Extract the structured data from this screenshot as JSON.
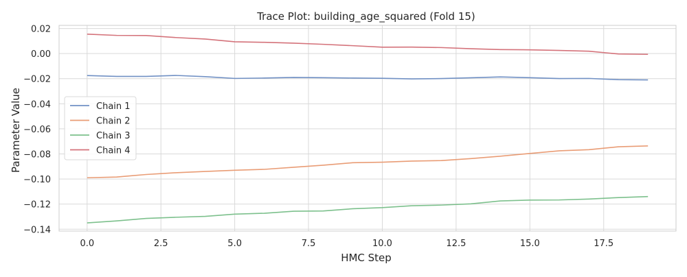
{
  "chart_data": {
    "type": "line",
    "title": "Trace Plot: building_age_squared (Fold 15)",
    "xlabel": "HMC Step",
    "ylabel": "Parameter Value",
    "x": [
      0,
      1,
      2,
      3,
      4,
      5,
      6,
      7,
      8,
      9,
      10,
      11,
      12,
      13,
      14,
      15,
      16,
      17,
      18,
      19
    ],
    "xlim": [
      -0.95,
      19.95
    ],
    "ylim": [
      -0.1415,
      0.0225
    ],
    "xticks": [
      0.0,
      2.5,
      5.0,
      7.5,
      10.0,
      12.5,
      15.0,
      17.5
    ],
    "xtick_labels": [
      "0.0",
      "2.5",
      "5.0",
      "7.5",
      "10.0",
      "12.5",
      "15.0",
      "17.5"
    ],
    "yticks": [
      0.02,
      0.0,
      -0.02,
      -0.04,
      -0.06,
      -0.08,
      -0.1,
      -0.12,
      -0.14
    ],
    "ytick_labels": [
      "0.02",
      "0.00",
      "−0.02",
      "−0.04",
      "−0.06",
      "−0.08",
      "−0.10",
      "−0.12",
      "−0.14"
    ],
    "grid": true,
    "legend_position": "center-left",
    "series": [
      {
        "name": "Chain 1",
        "color": "#7090c4",
        "values": [
          -0.0175,
          -0.0182,
          -0.0182,
          -0.0174,
          -0.0184,
          -0.0198,
          -0.0195,
          -0.019,
          -0.0192,
          -0.0195,
          -0.0197,
          -0.0202,
          -0.0199,
          -0.0193,
          -0.0186,
          -0.0192,
          -0.0199,
          -0.0198,
          -0.0208,
          -0.021
        ]
      },
      {
        "name": "Chain 2",
        "color": "#e99c75",
        "values": [
          -0.099,
          -0.0984,
          -0.0964,
          -0.095,
          -0.094,
          -0.093,
          -0.0923,
          -0.0906,
          -0.089,
          -0.087,
          -0.0866,
          -0.0857,
          -0.0853,
          -0.0837,
          -0.0818,
          -0.0796,
          -0.0775,
          -0.0766,
          -0.0743,
          -0.0736
        ]
      },
      {
        "name": "Chain 3",
        "color": "#7cc08c",
        "values": [
          -0.135,
          -0.1334,
          -0.1314,
          -0.1305,
          -0.1298,
          -0.128,
          -0.1273,
          -0.1257,
          -0.1255,
          -0.1237,
          -0.1228,
          -0.1213,
          -0.1208,
          -0.1198,
          -0.1175,
          -0.1168,
          -0.1167,
          -0.116,
          -0.1148,
          -0.114
        ]
      },
      {
        "name": "Chain 4",
        "color": "#d4727a",
        "values": [
          0.0155,
          0.0145,
          0.0144,
          0.0128,
          0.0116,
          0.0094,
          0.009,
          0.0083,
          0.0074,
          0.0063,
          0.0051,
          0.0052,
          0.0048,
          0.0039,
          0.0032,
          0.003,
          0.0025,
          0.0019,
          -0.0003,
          -0.0006
        ]
      }
    ]
  }
}
